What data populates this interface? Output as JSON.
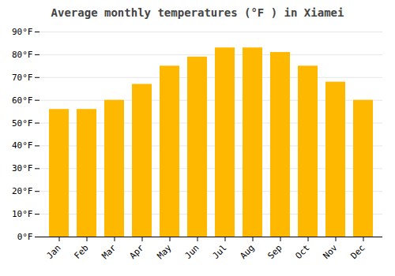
{
  "chart_data": {
    "type": "bar",
    "title": "Average monthly temperatures (°F ) in Xiamei",
    "categories": [
      "Jan",
      "Feb",
      "Mar",
      "Apr",
      "May",
      "Jun",
      "Jul",
      "Aug",
      "Sep",
      "Oct",
      "Nov",
      "Dec"
    ],
    "values": [
      56,
      56,
      60,
      67,
      75,
      79,
      83,
      83,
      81,
      75,
      68,
      60
    ],
    "color": "#FFB800",
    "ylim": [
      0,
      90
    ],
    "yticks": [
      {
        "value": 0,
        "label": "0°F"
      },
      {
        "value": 10,
        "label": "10°F"
      },
      {
        "value": 20,
        "label": "20°F"
      },
      {
        "value": 30,
        "label": "30°F"
      },
      {
        "value": 40,
        "label": "40°F"
      },
      {
        "value": 50,
        "label": "50°F"
      },
      {
        "value": 60,
        "label": "60°F"
      },
      {
        "value": 70,
        "label": "70°F"
      },
      {
        "value": 80,
        "label": "80°F"
      },
      {
        "value": 90,
        "label": "90°F"
      }
    ],
    "grid": true
  }
}
